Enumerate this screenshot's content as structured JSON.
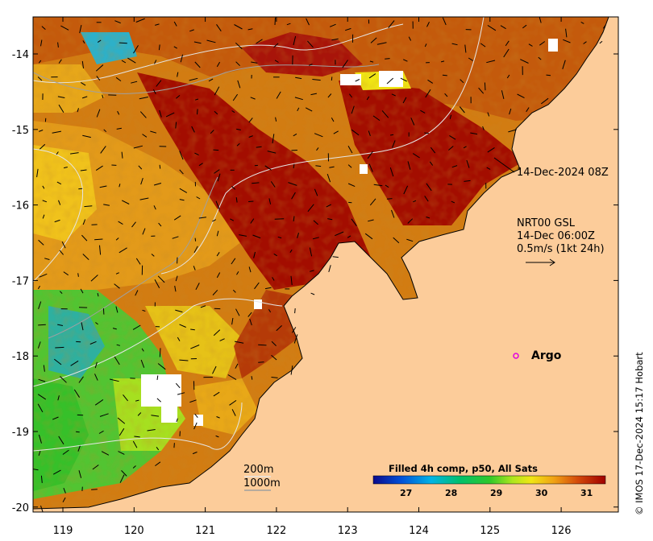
{
  "map": {
    "timestamp_label": "14-Dec-2024 08Z",
    "current_product": {
      "line1": "NRT00 GSL",
      "line2": "14-Dec 06:00Z",
      "line3": "0.5m/s (1kt 24h)"
    },
    "argo_label": "Argo",
    "contour_labels": {
      "shallow": "200m",
      "deep": "1000m"
    },
    "colorbar": {
      "title": "Filled 4h comp, p50, All Sats",
      "ticks": [
        "27",
        "28",
        "29",
        "30",
        "31"
      ]
    },
    "credit": "© IMOS 17-Dec-2024 15:17 Hobart",
    "lon_ticks": [
      "119",
      "120",
      "121",
      "122",
      "123",
      "124",
      "125",
      "126"
    ],
    "lat_ticks": [
      "-14",
      "-15",
      "-16",
      "-17",
      "-18",
      "-19",
      "-20"
    ],
    "colors": {
      "land": "#fccc9a",
      "hot": "#a30d00",
      "warm": "#cc6a10",
      "mid": "#e09518",
      "cool": "#3cbf2c"
    }
  }
}
